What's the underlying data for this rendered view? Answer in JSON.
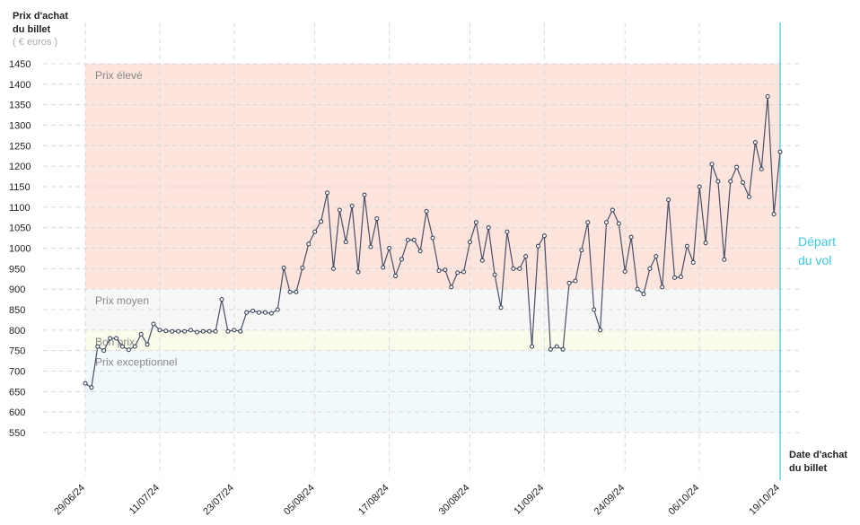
{
  "chart_data": {
    "type": "line",
    "y_label": [
      "Prix d'achat",
      "du billet"
    ],
    "y_unit": "( € euros )",
    "x_label": [
      "Date d'achat",
      "du billet"
    ],
    "annotation": [
      "Départ",
      "du vol"
    ],
    "annotation_color": "#3cc8e0",
    "bands": [
      {
        "label": "Prix élevé",
        "from": 900,
        "to": 1450,
        "color": "#fde4dd"
      },
      {
        "label": "Prix moyen",
        "from": 800,
        "to": 900,
        "color": "#f7f7f7"
      },
      {
        "label": "Bon prix",
        "from": 750,
        "to": 800,
        "color": "#fbfbec"
      },
      {
        "label": "Prix exceptionnel",
        "from": 550,
        "to": 750,
        "color": "#f2f9fc"
      }
    ],
    "categories": [
      "29/06/24",
      null,
      null,
      null,
      null,
      null,
      null,
      null,
      null,
      null,
      null,
      null,
      "11/07/24",
      null,
      null,
      null,
      null,
      null,
      null,
      null,
      null,
      null,
      null,
      null,
      "23/07/24",
      null,
      null,
      null,
      null,
      null,
      null,
      null,
      null,
      null,
      null,
      null,
      null,
      "05/08/24",
      null,
      null,
      null,
      null,
      null,
      null,
      null,
      null,
      null,
      null,
      null,
      "17/08/24",
      null,
      null,
      null,
      null,
      null,
      null,
      null,
      null,
      null,
      null,
      null,
      null,
      "30/08/24",
      null,
      null,
      null,
      null,
      null,
      null,
      null,
      null,
      null,
      null,
      null,
      "11/09/24",
      null,
      null,
      null,
      null,
      null,
      null,
      null,
      null,
      null,
      null,
      null,
      null,
      "24/09/24",
      null,
      null,
      null,
      null,
      null,
      null,
      null,
      null,
      null,
      null,
      null,
      "06/10/24",
      null,
      null,
      null,
      null,
      null,
      null,
      null,
      null,
      null,
      null,
      null,
      null,
      "19/10/24"
    ],
    "series": [
      {
        "name": "Prix",
        "color": "#4a5068",
        "values": [
          670,
          660,
          760,
          750,
          780,
          780,
          760,
          752,
          760,
          790,
          765,
          815,
          800,
          798,
          797,
          797,
          797,
          800,
          795,
          797,
          797,
          797,
          875,
          797,
          800,
          797,
          843,
          847,
          843,
          843,
          841,
          850,
          952,
          893,
          893,
          952,
          1010,
          1040,
          1065,
          1135,
          950,
          1093,
          1015,
          1103,
          942,
          1130,
          1003,
          1072,
          953,
          1000,
          932,
          973,
          1020,
          1020,
          993,
          1090,
          1025,
          945,
          947,
          905,
          940,
          942,
          1015,
          1063,
          970,
          1050,
          935,
          855,
          1040,
          950,
          950,
          980,
          760,
          1005,
          1030,
          753,
          760,
          753,
          915,
          920,
          995,
          1063,
          850,
          800,
          1063,
          1093,
          1060,
          943,
          1027,
          900,
          888,
          950,
          980,
          905,
          1118,
          928,
          930,
          1005,
          965,
          1150,
          1013,
          1205,
          1163,
          972,
          1163,
          1198,
          1160,
          1125,
          1258,
          1193,
          1370,
          1083,
          1235
        ]
      }
    ],
    "ylim": [
      500,
      1450
    ],
    "yticks": [
      550,
      600,
      650,
      700,
      750,
      800,
      850,
      900,
      950,
      1000,
      1050,
      1100,
      1150,
      1200,
      1250,
      1300,
      1350,
      1400,
      1450
    ],
    "grid": true
  }
}
